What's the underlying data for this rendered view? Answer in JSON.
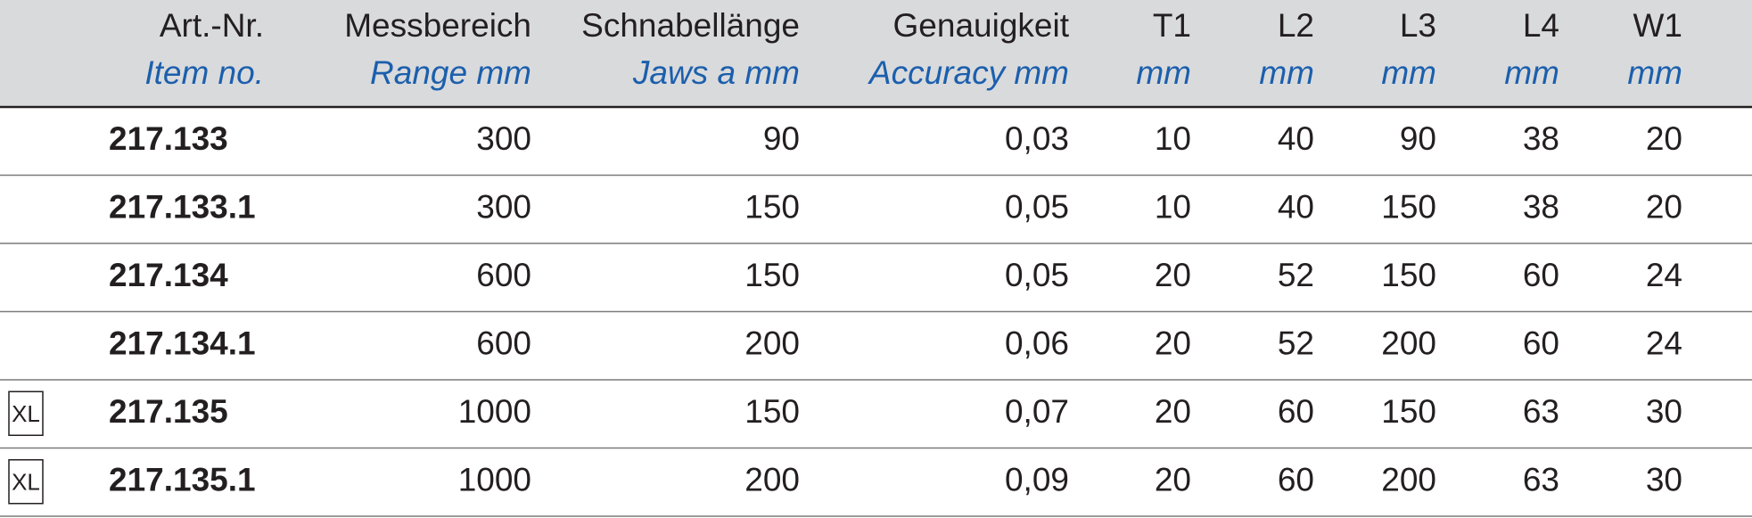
{
  "header": {
    "columns": [
      {
        "label": "Art.-Nr.",
        "sublabel": "Item no."
      },
      {
        "label": "Messbereich",
        "sublabel": "Range mm"
      },
      {
        "label": "Schnabellänge",
        "sublabel": "Jaws a mm"
      },
      {
        "label": "Genauigkeit",
        "sublabel": "Accuracy mm"
      },
      {
        "label": "T1",
        "sublabel": "mm"
      },
      {
        "label": "L2",
        "sublabel": "mm"
      },
      {
        "label": "L3",
        "sublabel": "mm"
      },
      {
        "label": "L4",
        "sublabel": "mm"
      },
      {
        "label": "W1",
        "sublabel": "mm"
      }
    ]
  },
  "table": {
    "rows": [
      {
        "item": "217.133",
        "cells": [
          "300",
          "90",
          "0,03",
          "10",
          "40",
          "90",
          "38",
          "20"
        ]
      },
      {
        "item": "217.133.1",
        "cells": [
          "300",
          "150",
          "0,05",
          "10",
          "40",
          "150",
          "38",
          "20"
        ]
      },
      {
        "item": "217.134",
        "cells": [
          "600",
          "150",
          "0,05",
          "20",
          "52",
          "150",
          "60",
          "24"
        ]
      },
      {
        "item": "217.134.1",
        "cells": [
          "600",
          "200",
          "0,06",
          "20",
          "52",
          "200",
          "60",
          "24"
        ]
      },
      {
        "marker": "XL",
        "item": "217.135",
        "cells": [
          "1000",
          "150",
          "0,07",
          "20",
          "60",
          "150",
          "63",
          "30"
        ]
      },
      {
        "marker": "XL",
        "item": "217.135.1",
        "cells": [
          "1000",
          "200",
          "0,09",
          "20",
          "60",
          "200",
          "63",
          "30"
        ]
      }
    ]
  }
}
